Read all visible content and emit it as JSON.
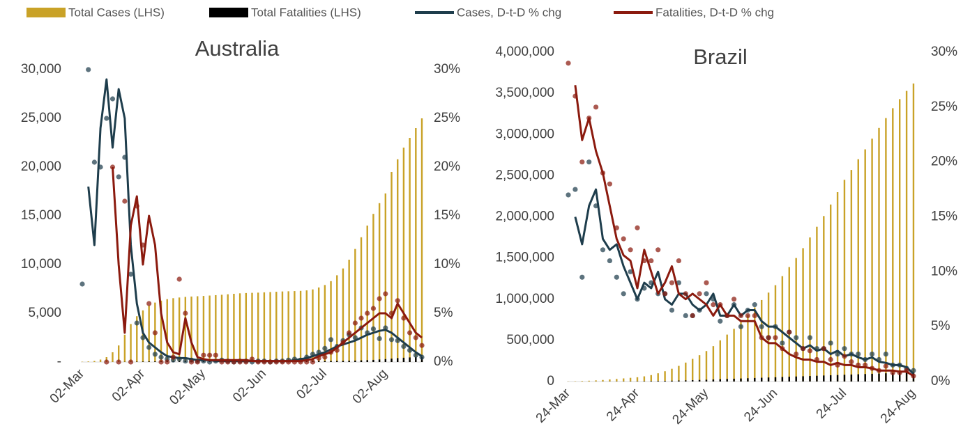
{
  "chart_data": [
    {
      "type": "combo",
      "title": "Australia",
      "categories": [
        "02-Mar",
        null,
        null,
        null,
        null,
        null,
        null,
        null,
        null,
        null,
        "02-Apr",
        null,
        null,
        null,
        null,
        null,
        null,
        null,
        null,
        null,
        "02-May",
        null,
        null,
        null,
        null,
        null,
        null,
        null,
        null,
        null,
        "02-Jun",
        null,
        null,
        null,
        null,
        null,
        null,
        null,
        null,
        null,
        "02-Jul",
        null,
        null,
        null,
        null,
        null,
        null,
        null,
        null,
        null,
        "02-Aug",
        null,
        null,
        null,
        null,
        null,
        null
      ],
      "series": [
        {
          "name": "Total Cases (LHS)",
          "type": "bar",
          "color": "#c9a227",
          "values": [
            30,
            60,
            110,
            250,
            500,
            1000,
            1700,
            2800,
            3900,
            4700,
            5300,
            5800,
            6100,
            6300,
            6450,
            6550,
            6620,
            6680,
            6720,
            6750,
            6780,
            6820,
            6860,
            6900,
            6950,
            7000,
            7050,
            7080,
            7100,
            7120,
            7150,
            7180,
            7210,
            7240,
            7260,
            7280,
            7300,
            7350,
            7450,
            7650,
            7900,
            8300,
            8900,
            9600,
            10500,
            11600,
            12800,
            14000,
            15200,
            16300,
            17300,
            19500,
            20800,
            22000,
            23000,
            24000,
            25000
          ]
        },
        {
          "name": "Total Fatalities (LHS)",
          "type": "bar",
          "color": "#000000",
          "values": [
            0,
            0,
            1,
            1,
            3,
            6,
            10,
            18,
            25,
            35,
            45,
            55,
            63,
            70,
            80,
            88,
            93,
            96,
            98,
            100,
            100,
            102,
            102,
            102,
            102,
            102,
            103,
            103,
            103,
            104,
            104,
            104,
            104,
            104,
            104,
            104,
            104,
            104,
            105,
            106,
            108,
            110,
            116,
            123,
            135,
            150,
            170,
            195,
            220,
            260,
            300,
            350,
            400,
            440,
            470,
            500,
            525
          ]
        },
        {
          "name": "Cases, D-t-D % chg",
          "type": "line",
          "axis": "y2",
          "color": "#1e3d4c",
          "values": [
            null,
            18,
            12,
            24,
            29,
            22,
            28,
            25,
            12,
            6,
            3,
            2,
            1.5,
            1,
            0.6,
            0.5,
            0.4,
            0.4,
            0.3,
            0.2,
            0.2,
            0.2,
            0.1,
            0.1,
            0.1,
            0.1,
            0.1,
            0.1,
            0.1,
            0.1,
            0.1,
            0.1,
            0.1,
            0.1,
            0.1,
            0.2,
            0.3,
            0.4,
            0.6,
            0.8,
            1,
            1.3,
            1.6,
            1.8,
            2,
            2.2,
            2.5,
            2.8,
            3,
            3.2,
            3.3,
            3,
            2.5,
            2,
            1.5,
            1,
            0.6
          ],
          "points": [
            8,
            30,
            20.5,
            20,
            25,
            27,
            19,
            21,
            9,
            4,
            2.5,
            1.5,
            0.8,
            0.5,
            0.3,
            0.2,
            0.3,
            0.1,
            0.2,
            0.1,
            0.1,
            0,
            0.1,
            0.2,
            0.1,
            0,
            0.1,
            0.1,
            0,
            0.1,
            0.1,
            0,
            0.1,
            0.1,
            0.2,
            0.3,
            0.2,
            0.5,
            0.8,
            1,
            1.4,
            2.3,
            1.6,
            2.2,
            2.8,
            2.5,
            3.5,
            3,
            3.4,
            2.4,
            3.5,
            2.3,
            2.2,
            1.6,
            1.2,
            0.7,
            0.5
          ]
        },
        {
          "name": "Fatalities, D-t-D % chg",
          "type": "line",
          "axis": "y2",
          "color": "#8b1a0e",
          "values": [
            null,
            null,
            null,
            null,
            null,
            20,
            10,
            3,
            14,
            17,
            10,
            15,
            12,
            5,
            2,
            1,
            0.8,
            4.5,
            2,
            0.5,
            0.3,
            0.2,
            0.2,
            0.2,
            0.2,
            0.2,
            0.2,
            0.2,
            0.1,
            0.1,
            0.1,
            0.1,
            0.1,
            0.1,
            0.1,
            0.1,
            0.1,
            0.2,
            0.3,
            0.6,
            0.8,
            1,
            1.5,
            2,
            2.5,
            3,
            3.5,
            4,
            4.5,
            5,
            5,
            4.5,
            6,
            5,
            4,
            3,
            2.5
          ],
          "points": [
            null,
            null,
            null,
            null,
            0,
            20,
            0,
            16.5,
            0,
            16,
            12,
            6,
            3,
            0,
            0,
            0.5,
            8.5,
            5,
            0,
            0,
            0.7,
            0.7,
            0.7,
            0,
            0,
            0,
            0,
            0,
            0.3,
            0,
            0,
            0,
            0,
            0,
            0,
            0,
            0,
            0,
            0,
            0.4,
            0.5,
            1,
            1.2,
            2,
            3,
            4,
            4.5,
            5,
            5.5,
            6.5,
            7,
            5,
            6.3,
            4.5,
            3,
            2.5,
            1.7
          ]
        }
      ],
      "ylim": [
        0,
        30000
      ],
      "yticks": [
        {
          "value": 0,
          "label": "-"
        },
        {
          "value": 5000,
          "label": "5,000"
        },
        {
          "value": 10000,
          "label": "10,000"
        },
        {
          "value": 15000,
          "label": "15,000"
        },
        {
          "value": 20000,
          "label": "20,000"
        },
        {
          "value": 25000,
          "label": "25,000"
        },
        {
          "value": 30000,
          "label": "30,000"
        }
      ],
      "y2lim": [
        0,
        30
      ],
      "y2ticks": [
        {
          "value": 0,
          "label": "0%"
        },
        {
          "value": 5,
          "label": "5%"
        },
        {
          "value": 10,
          "label": "10%"
        },
        {
          "value": 15,
          "label": "15%"
        },
        {
          "value": 20,
          "label": "20%"
        },
        {
          "value": 25,
          "label": "25%"
        },
        {
          "value": 30,
          "label": "30%"
        }
      ]
    },
    {
      "type": "combo",
      "title": "Brazil",
      "categories": [
        "24-Mar",
        null,
        null,
        null,
        null,
        null,
        null,
        null,
        null,
        null,
        "24-Apr",
        null,
        null,
        null,
        null,
        null,
        null,
        null,
        null,
        null,
        "24-May",
        null,
        null,
        null,
        null,
        null,
        null,
        null,
        null,
        null,
        "24-Jun",
        null,
        null,
        null,
        null,
        null,
        null,
        null,
        null,
        null,
        "24-Jul",
        null,
        null,
        null,
        null,
        null,
        null,
        null,
        null,
        null,
        "24-Aug"
      ],
      "series": [
        {
          "name": "Total Cases (LHS)",
          "type": "bar",
          "color": "#c9a227",
          "values": [
            2000,
            4000,
            7000,
            10000,
            14000,
            19000,
            25000,
            31000,
            38000,
            45000,
            52000,
            63000,
            78000,
            100000,
            125000,
            155000,
            190000,
            230000,
            275000,
            320000,
            370000,
            430000,
            500000,
            570000,
            640000,
            720000,
            810000,
            900000,
            990000,
            1080000,
            1170000,
            1280000,
            1390000,
            1500000,
            1620000,
            1750000,
            1880000,
            2010000,
            2150000,
            2300000,
            2450000,
            2570000,
            2700000,
            2820000,
            2950000,
            3080000,
            3200000,
            3320000,
            3430000,
            3530000,
            3620000
          ]
        },
        {
          "name": "Total Fatalities (LHS)",
          "type": "bar",
          "color": "#000000",
          "values": [
            50,
            120,
            250,
            400,
            700,
            1000,
            1400,
            1800,
            2200,
            2600,
            3300,
            4300,
            5500,
            7000,
            8500,
            10000,
            12000,
            14000,
            16500,
            19000,
            21500,
            24500,
            27500,
            31000,
            34000,
            37000,
            40000,
            43000,
            46000,
            49000,
            52000,
            55000,
            58000,
            61000,
            64000,
            67000,
            70000,
            73000,
            76000,
            79000,
            82000,
            85000,
            88000,
            91000,
            94000,
            97000,
            100000,
            103000,
            106000,
            109000,
            112000
          ]
        },
        {
          "name": "Cases, D-t-D % chg",
          "type": "line",
          "axis": "y2",
          "color": "#1e3d4c",
          "values": [
            null,
            15,
            12.5,
            16,
            17.5,
            13,
            12,
            12.5,
            10.5,
            9,
            7.5,
            9,
            8.5,
            10,
            7.5,
            7,
            8,
            8,
            7,
            6.5,
            7,
            8,
            6,
            6,
            7,
            6,
            6.5,
            6.5,
            5.5,
            5,
            5,
            4.5,
            4,
            3.5,
            3,
            3.3,
            2.8,
            3,
            2.5,
            2.8,
            2.3,
            2.5,
            2.2,
            2,
            2.2,
            1.8,
            1.7,
            1.5,
            1.5,
            1.3,
            0.7
          ],
          "points": [
            17,
            17.5,
            9.5,
            20,
            16,
            12,
            11,
            9.5,
            8,
            10,
            7.5,
            8.5,
            9,
            8,
            8,
            6.5,
            9,
            6,
            6,
            6.5,
            8,
            7.5,
            5.5,
            6,
            7,
            5,
            6.5,
            7,
            5,
            4,
            5,
            3.5,
            4.5,
            4,
            3,
            4,
            3,
            3,
            3.5,
            2.5,
            3,
            2.5,
            2.5,
            2,
            2.5,
            2,
            2.5,
            1.5,
            1.5,
            1.2,
            1
          ]
        },
        {
          "name": "Fatalities, D-t-D % chg",
          "type": "line",
          "axis": "y2",
          "color": "#8b1a0e",
          "values": [
            null,
            27,
            22,
            24,
            21,
            19,
            16,
            13,
            11.5,
            11,
            8.5,
            12,
            10,
            8,
            9,
            10.5,
            8,
            7.5,
            8,
            7.5,
            7,
            6,
            7,
            6,
            6,
            5.5,
            5.5,
            5.5,
            4,
            3.5,
            3.5,
            3,
            2.5,
            2.2,
            2,
            2,
            1.8,
            1.8,
            1.5,
            1.7,
            1.5,
            1.5,
            1.3,
            1.3,
            1.2,
            1,
            1,
            1,
            0.9,
            0.9,
            0.5
          ],
          "points": [
            29,
            26,
            20,
            24,
            25,
            19,
            18,
            14,
            13,
            12,
            14,
            11,
            11,
            12,
            8,
            9,
            11,
            8,
            6,
            8,
            9,
            7,
            7,
            6,
            7.5,
            6,
            6,
            6,
            4,
            4,
            4,
            3,
            4.5,
            2.5,
            3,
            2.8,
            2,
            3,
            2,
            1.5,
            2.3,
            1.8,
            1.5,
            1.5,
            1.2,
            1,
            1.4,
            0.8,
            0.8,
            1,
            0.5
          ]
        }
      ],
      "ylim": [
        0,
        4000000
      ],
      "yticks": [
        0,
        {
          "value": 500000,
          "label": "500,000"
        },
        {
          "value": 1000000,
          "label": "1,000,000"
        },
        {
          "value": 1500000,
          "label": "1,500,000"
        },
        {
          "value": 2000000,
          "label": "2,000,000"
        },
        {
          "value": 2500000,
          "label": "2,500,000"
        },
        {
          "value": 3000000,
          "label": "3,000,000"
        },
        {
          "value": 3500000,
          "label": "3,500,000"
        },
        {
          "value": 4000000,
          "label": "4,000,000"
        }
      ],
      "y2lim": [
        0,
        30
      ],
      "y2ticks": [
        {
          "value": 0,
          "label": "0%"
        },
        {
          "value": 5,
          "label": "5%"
        },
        {
          "value": 10,
          "label": "10%"
        },
        {
          "value": 15,
          "label": "15%"
        },
        {
          "value": 20,
          "label": "20%"
        },
        {
          "value": 25,
          "label": "25%"
        },
        {
          "value": 30,
          "label": "30%"
        }
      ]
    }
  ]
}
